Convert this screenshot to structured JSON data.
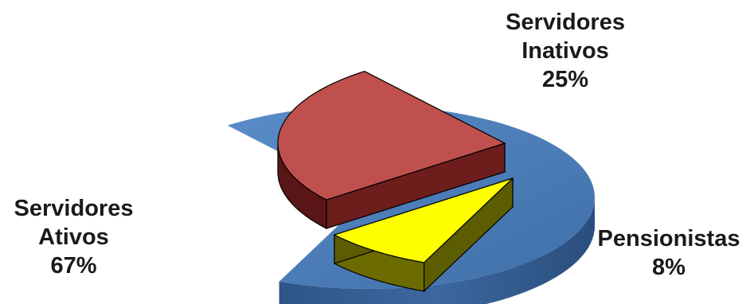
{
  "chart_data": {
    "type": "pie",
    "title": "",
    "style": "3d-exploded",
    "legend": "none",
    "slices": [
      {
        "label_line1": "Servidores",
        "label_line2": "Ativos",
        "value": 67,
        "value_label": "67%",
        "color": "#4f81bd"
      },
      {
        "label_line1": "Servidores",
        "label_line2": "Inativos",
        "value": 25,
        "value_label": "25%",
        "color": "#c0504d"
      },
      {
        "label_line1": "Pensionistas",
        "label_line2": "",
        "value": 8,
        "value_label": "8%",
        "color": "#ffff00"
      }
    ]
  }
}
